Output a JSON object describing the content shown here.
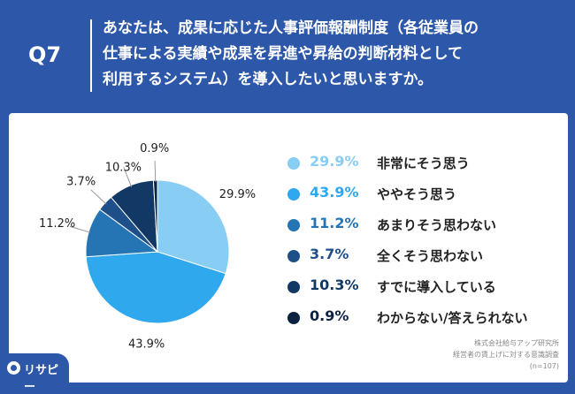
{
  "header": {
    "question_number": "Q7",
    "question_lines": [
      "あなたは、成果に応じた人事評価報酬制度（各従業員の",
      "仕事による実績や成果を昇進や昇給の判断材料として",
      "利用するシステム）を導入したいと思いますか。"
    ]
  },
  "chart_data": {
    "type": "pie",
    "title": "",
    "start_angle_deg": 0,
    "direction": "clockwise",
    "slices": [
      {
        "label": "非常にそう思う",
        "value": 29.9,
        "display": "29.9%",
        "color": "#88cdf4"
      },
      {
        "label": "ややそう思う",
        "value": 43.9,
        "display": "43.9%",
        "color": "#2fa8ee"
      },
      {
        "label": "あまりそう思わない",
        "value": 11.2,
        "display": "11.2%",
        "color": "#2575b5"
      },
      {
        "label": "全くそう思わない",
        "value": 3.7,
        "display": "3.7%",
        "color": "#1f4f88"
      },
      {
        "label": "すでに導入している",
        "value": 10.3,
        "display": "10.3%",
        "color": "#123966"
      },
      {
        "label": "わからない/答えられない",
        "value": 0.9,
        "display": "0.9%",
        "color": "#0b2240"
      }
    ],
    "legend_placement": "right"
  },
  "source": {
    "lines": [
      "株式会社給与アップ研究所",
      "経営者の賃上げに対する意識調査",
      "(n=107)"
    ]
  },
  "logo": {
    "text": "リサピー"
  }
}
